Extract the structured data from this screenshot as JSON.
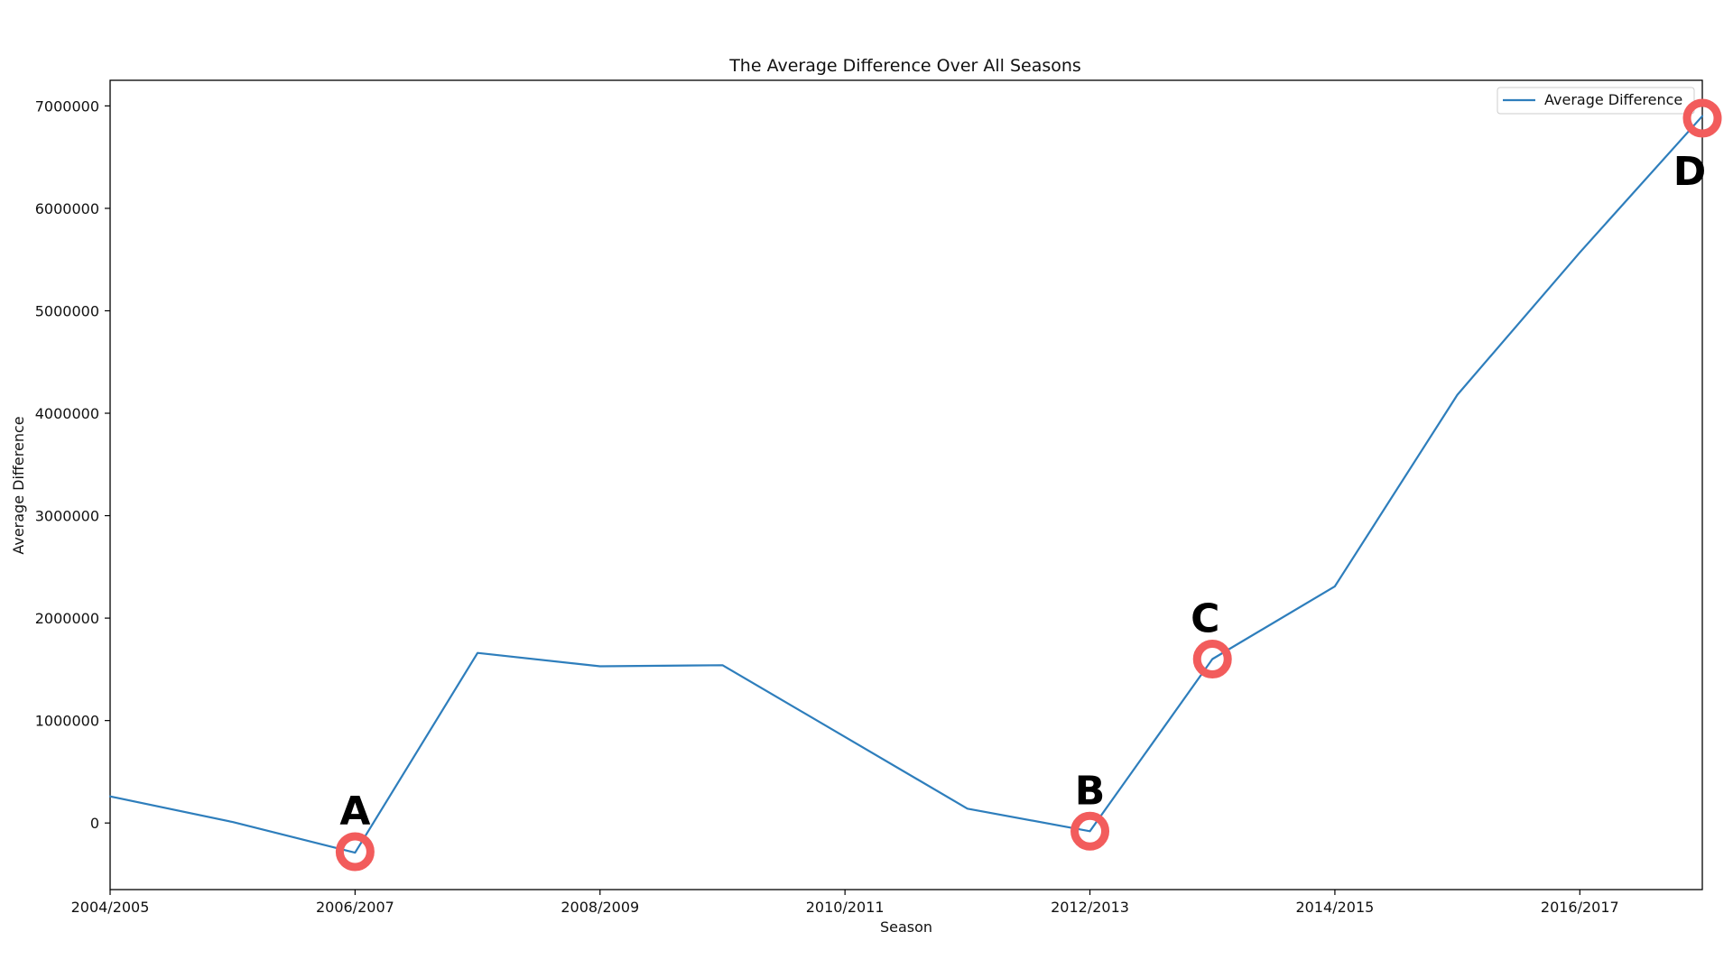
{
  "chart_data": {
    "type": "line",
    "title": "The Average Difference Over All Seasons",
    "xlabel": "Season",
    "ylabel": "Average Difference",
    "x": [
      "2004/2005",
      "2005/2006",
      "2006/2007",
      "2007/2008",
      "2008/2009",
      "2009/2010",
      "2010/2011",
      "2011/2012",
      "2012/2013",
      "2013/2014",
      "2014/2015",
      "2015/2016",
      "2016/2017",
      "2017/2018"
    ],
    "x_tick_labels": [
      "2004/2005",
      "2006/2007",
      "2008/2009",
      "2010/2011",
      "2012/2013",
      "2014/2015",
      "2016/2017"
    ],
    "y_tick_values": [
      0,
      1000000,
      2000000,
      3000000,
      4000000,
      5000000,
      6000000,
      7000000
    ],
    "y_tick_labels": [
      "0",
      "1000000",
      "2000000",
      "3000000",
      "4000000",
      "5000000",
      "6000000",
      "7000000"
    ],
    "ylim": [
      -650000,
      7250000
    ],
    "series": [
      {
        "name": "Average Difference",
        "color": "#2e7ebc",
        "values": [
          260000,
          10000,
          -290000,
          1660000,
          1530000,
          1540000,
          840000,
          140000,
          -80000,
          1600000,
          2310000,
          4180000,
          5570000,
          6900000
        ]
      }
    ],
    "legend": {
      "position": "top-right",
      "labels": [
        "Average Difference"
      ]
    },
    "grid": false,
    "annotations": [
      {
        "label": "A",
        "x": "2006/2007",
        "y": -280000,
        "label_side": "above",
        "color": "#f25c5c"
      },
      {
        "label": "B",
        "x": "2012/2013",
        "y": -80000,
        "label_side": "above",
        "color": "#f25c5c"
      },
      {
        "label": "C",
        "x": "2013/2014",
        "y": 1600000,
        "label_side": "above",
        "color": "#f25c5c"
      },
      {
        "label": "D",
        "x": "2017/2018",
        "y": 6880000,
        "label_side": "below",
        "color": "#f25c5c"
      }
    ]
  }
}
